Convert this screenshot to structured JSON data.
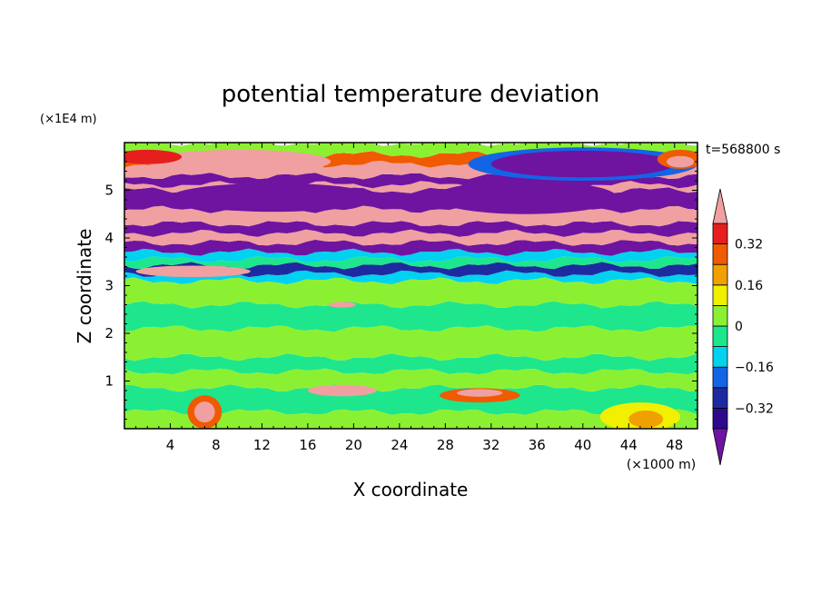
{
  "chart_data": {
    "type": "heatmap",
    "title": "potential temperature deviation",
    "xlabel": "X coordinate",
    "ylabel": "Z coordinate",
    "x_unit": "(×1000 m)",
    "y_unit": "(×1E4 m)",
    "time_label": "t=568800 s",
    "xlim": [
      0,
      50
    ],
    "ylim": [
      0,
      6
    ],
    "x_ticks": [
      4,
      8,
      12,
      16,
      20,
      24,
      28,
      32,
      36,
      40,
      44,
      48
    ],
    "y_ticks": [
      1,
      2,
      3,
      4,
      5
    ],
    "colorbar": {
      "levels": [
        -0.4,
        -0.32,
        -0.24,
        -0.16,
        -0.08,
        0,
        0.08,
        0.16,
        0.24,
        0.32,
        0.4
      ],
      "colors": [
        "#2d0a8c",
        "#1e2aa0",
        "#1464e6",
        "#00d2f0",
        "#1ee68c",
        "#8cf032",
        "#f0f000",
        "#f0a000",
        "#f05a00",
        "#e61e1e"
      ],
      "under_color": "#6e14a0",
      "over_color": "#f0a0a0",
      "tick_labels": [
        "0.32",
        "0.16",
        "0",
        "−0.16",
        "−0.32"
      ],
      "tick_values": [
        0.32,
        0.16,
        0,
        -0.16,
        -0.32
      ]
    },
    "bands": [
      {
        "z0": 0.0,
        "z1": 0.35,
        "color": "#8cf032"
      },
      {
        "z0": 0.35,
        "z1": 0.85,
        "color": "#1ee68c"
      },
      {
        "z0": 0.85,
        "z1": 1.2,
        "color": "#8cf032"
      },
      {
        "z0": 1.2,
        "z1": 1.5,
        "color": "#1ee68c"
      },
      {
        "z0": 1.5,
        "z1": 2.1,
        "color": "#8cf032"
      },
      {
        "z0": 2.1,
        "z1": 2.6,
        "color": "#1ee68c"
      },
      {
        "z0": 2.6,
        "z1": 3.1,
        "color": "#8cf032"
      },
      {
        "z0": 3.1,
        "z1": 3.25,
        "color": "#00d2f0"
      },
      {
        "z0": 3.25,
        "z1": 3.42,
        "color": "#1e2aa0"
      },
      {
        "z0": 3.42,
        "z1": 3.55,
        "color": "#1ee68c"
      },
      {
        "z0": 3.55,
        "z1": 3.7,
        "color": "#00d2f0"
      },
      {
        "z0": 3.7,
        "z1": 3.9,
        "color": "#6e14a0"
      },
      {
        "z0": 3.9,
        "z1": 4.1,
        "color": "#f0a0a0"
      },
      {
        "z0": 4.1,
        "z1": 4.3,
        "color": "#6e14a0"
      },
      {
        "z0": 4.3,
        "z1": 4.6,
        "color": "#f0a0a0"
      },
      {
        "z0": 4.6,
        "z1": 5.0,
        "color": "#6e14a0"
      },
      {
        "z0": 5.0,
        "z1": 5.12,
        "color": "#f0a0a0"
      },
      {
        "z0": 5.12,
        "z1": 5.3,
        "color": "#6e14a0"
      },
      {
        "z0": 5.3,
        "z1": 5.55,
        "color": "#f0a0a0"
      },
      {
        "z0": 5.55,
        "z1": 5.75,
        "color": "#f05a00"
      },
      {
        "z0": 5.75,
        "z1": 6.0,
        "color": "#8cf032"
      }
    ],
    "blobs": [
      {
        "x": 7.0,
        "z": 0.35,
        "rx": 1.5,
        "rz": 0.35,
        "color": "#f05a00"
      },
      {
        "x": 7.0,
        "z": 0.35,
        "rx": 0.9,
        "rz": 0.22,
        "color": "#f0a0a0"
      },
      {
        "x": 19.0,
        "z": 0.8,
        "rx": 3.0,
        "rz": 0.12,
        "color": "#f0a0a0"
      },
      {
        "x": 31.0,
        "z": 0.7,
        "rx": 3.5,
        "rz": 0.15,
        "color": "#f05a00"
      },
      {
        "x": 31.0,
        "z": 0.75,
        "rx": 2.0,
        "rz": 0.08,
        "color": "#f0a0a0"
      },
      {
        "x": 45.0,
        "z": 0.25,
        "rx": 3.5,
        "rz": 0.3,
        "color": "#f0f000"
      },
      {
        "x": 45.5,
        "z": 0.2,
        "rx": 1.5,
        "rz": 0.18,
        "color": "#f0a000"
      },
      {
        "x": 6.0,
        "z": 3.3,
        "rx": 5.0,
        "rz": 0.12,
        "color": "#f0a0a0"
      },
      {
        "x": 19.0,
        "z": 2.6,
        "rx": 1.2,
        "rz": 0.06,
        "color": "#f0a0a0"
      },
      {
        "x": 13.0,
        "z": 4.85,
        "rx": 9.0,
        "rz": 0.3,
        "color": "#6e14a0"
      },
      {
        "x": 35.0,
        "z": 4.85,
        "rx": 8.0,
        "rz": 0.35,
        "color": "#6e14a0"
      },
      {
        "x": 10.0,
        "z": 5.6,
        "rx": 8.0,
        "rz": 0.25,
        "color": "#f0a0a0"
      },
      {
        "x": 40.0,
        "z": 5.55,
        "rx": 10.0,
        "rz": 0.35,
        "color": "#1464e6"
      },
      {
        "x": 40.0,
        "z": 5.55,
        "rx": 8.0,
        "rz": 0.28,
        "color": "#6e14a0"
      },
      {
        "x": 2.0,
        "z": 5.7,
        "rx": 3.0,
        "rz": 0.15,
        "color": "#e61e1e"
      },
      {
        "x": 48.5,
        "z": 5.65,
        "rx": 2.0,
        "rz": 0.2,
        "color": "#f05a00"
      },
      {
        "x": 48.5,
        "z": 5.6,
        "rx": 1.2,
        "rz": 0.12,
        "color": "#f0a0a0"
      }
    ]
  }
}
